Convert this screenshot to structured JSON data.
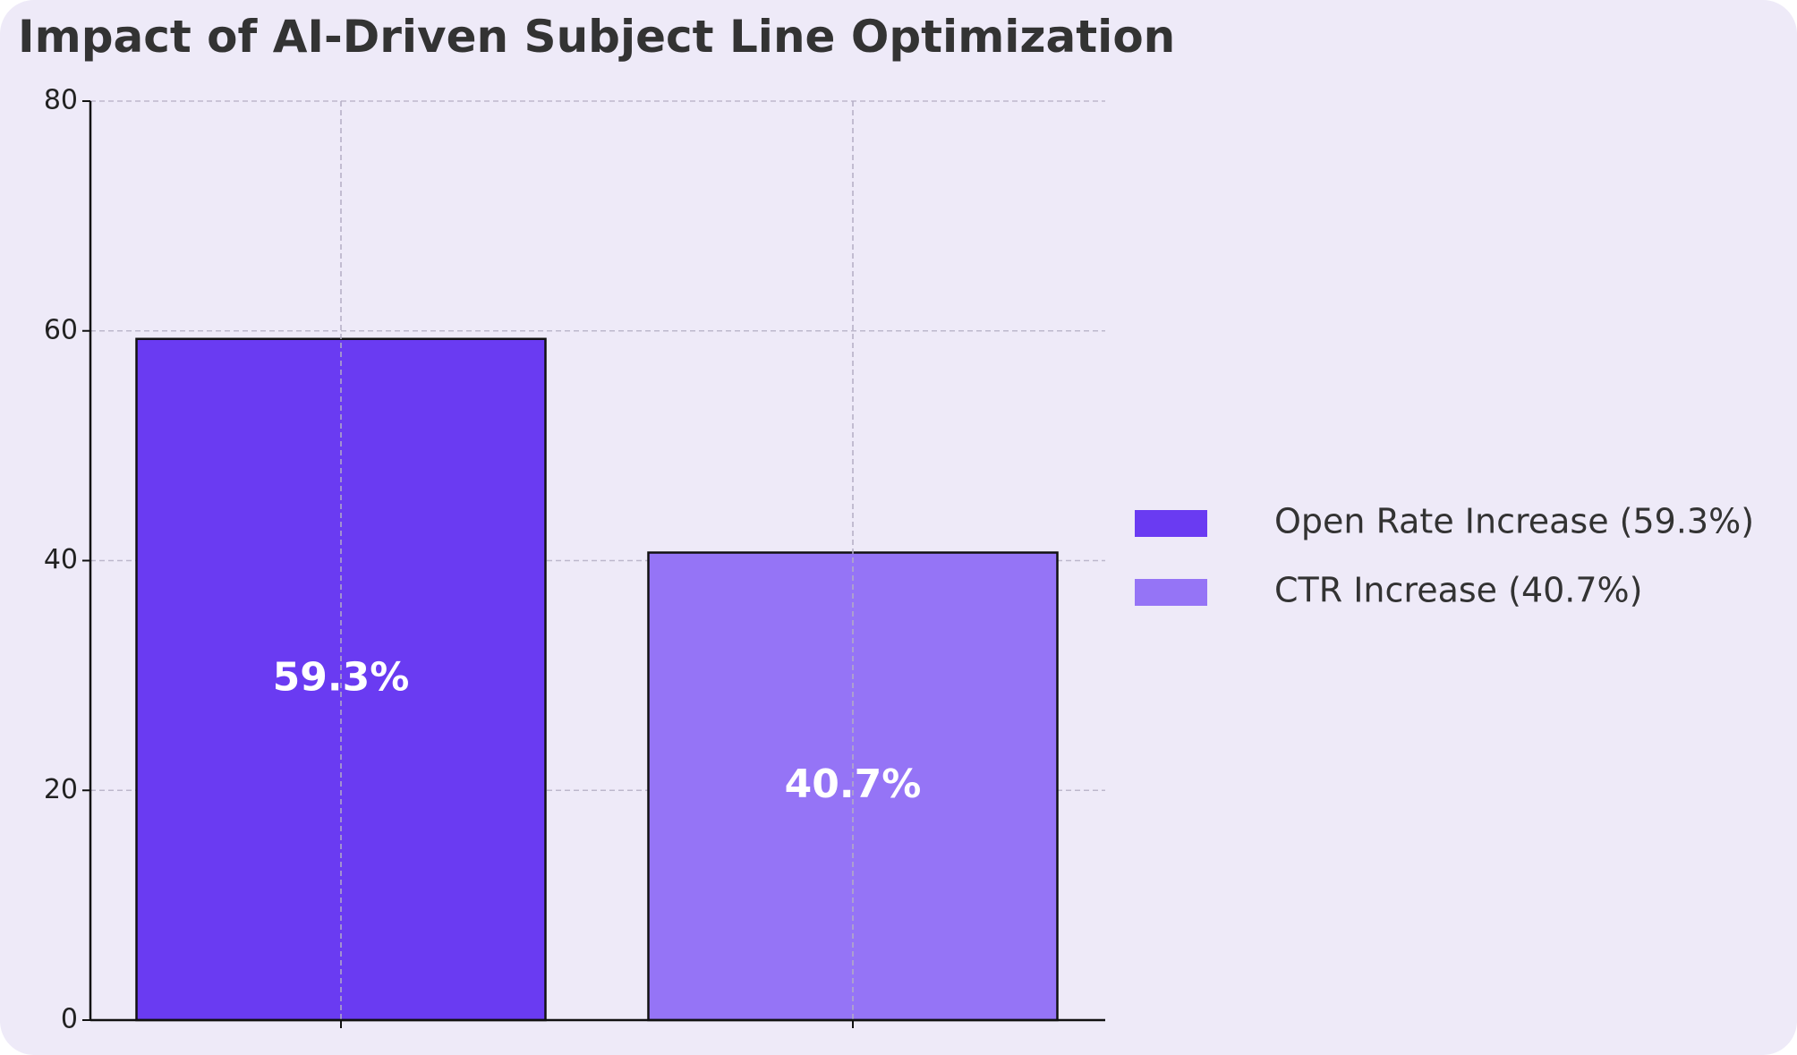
{
  "chart_data": {
    "type": "bar",
    "title": "Impact of AI-Driven Subject Line Optimization",
    "xlabel": "",
    "ylabel": "",
    "categories": [
      "Open Rate Increase",
      "CTR Increase"
    ],
    "values": [
      59.3,
      40.7
    ],
    "data_labels": [
      "59.3%",
      "40.7%"
    ],
    "colors": [
      "#6a3bf2",
      "#9574f6"
    ],
    "ylim": [
      0,
      80
    ],
    "yticks": [
      0,
      20,
      40,
      60,
      80
    ],
    "grid": true,
    "legend": {
      "placement": "right",
      "entries": [
        "Open Rate Increase (59.3%)",
        "CTR Increase (40.7%)"
      ]
    }
  }
}
